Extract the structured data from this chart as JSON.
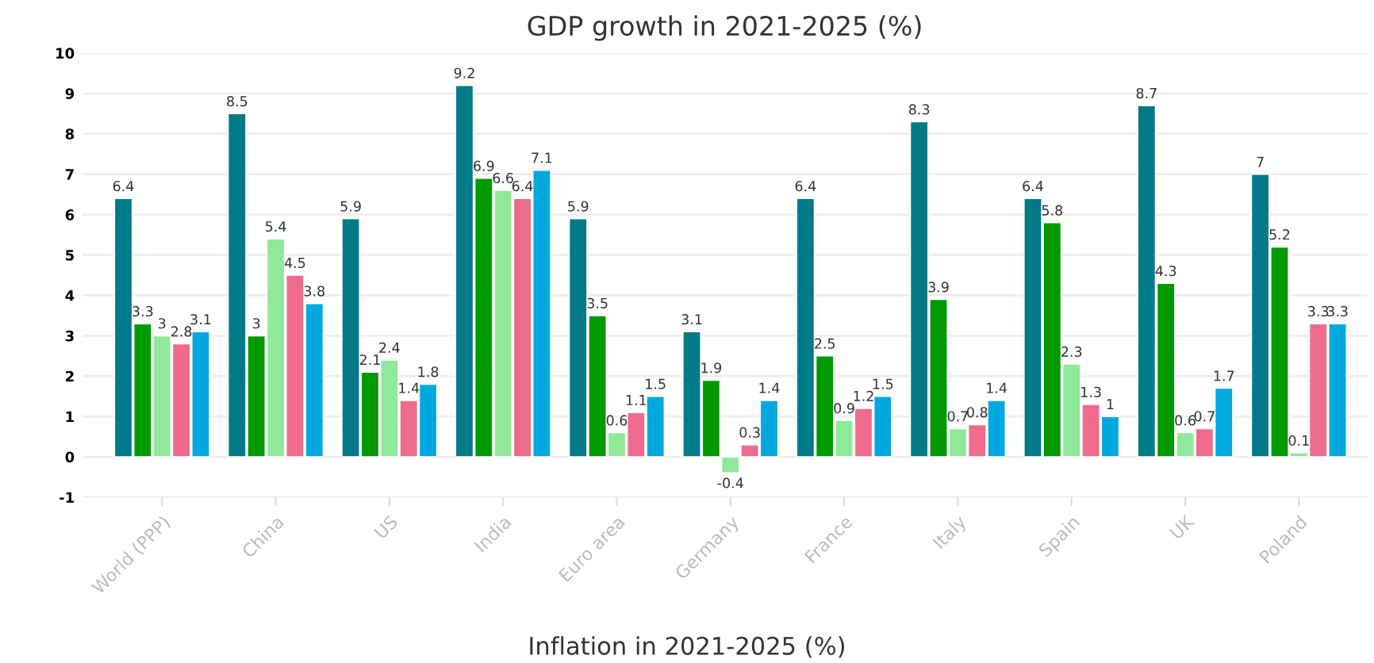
{
  "chart_data": {
    "type": "bar",
    "title": "GDP growth in 2021-2025 (%)",
    "categories": [
      "World (PPP)",
      "China",
      "US",
      "India",
      "Euro area",
      "Germany",
      "France",
      "Italy",
      "Spain",
      "UK",
      "Poland"
    ],
    "series": [
      {
        "color": "#007a87",
        "values": [
          6.4,
          8.5,
          5.9,
          9.2,
          5.9,
          3.1,
          6.4,
          8.3,
          6.4,
          8.7,
          7
        ]
      },
      {
        "color": "#009900",
        "values": [
          3.3,
          3,
          2.1,
          6.9,
          3.5,
          1.9,
          2.5,
          3.9,
          5.8,
          4.3,
          5.2
        ]
      },
      {
        "color": "#90e89a",
        "values": [
          3,
          5.4,
          2.4,
          6.6,
          0.6,
          -0.4,
          0.9,
          0.7,
          2.3,
          0.6,
          0.1
        ]
      },
      {
        "color": "#ee6b8d",
        "values": [
          2.8,
          4.5,
          1.4,
          6.4,
          1.1,
          0.3,
          1.2,
          0.8,
          1.3,
          0.7,
          3.3
        ]
      },
      {
        "color": "#00a8e0",
        "values": [
          3.1,
          3.8,
          1.8,
          7.1,
          1.5,
          1.4,
          1.5,
          1.4,
          1,
          1.7,
          3.3
        ]
      }
    ],
    "ylim": [
      -1,
      10
    ],
    "yticks": [
      -1,
      0,
      1,
      2,
      3,
      4,
      5,
      6,
      7,
      8,
      9,
      10
    ],
    "grid": "y",
    "data_labels": true,
    "annotations": [
      "Inflation in 2021-2025 (%)"
    ]
  }
}
